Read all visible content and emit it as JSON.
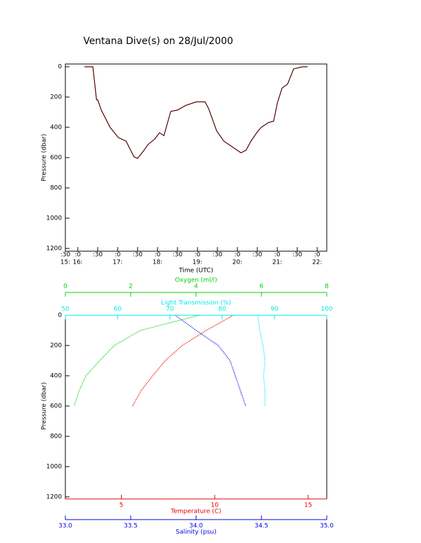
{
  "chart_data": [
    {
      "type": "line",
      "title": "Ventana Dive(s) on 28/Jul/2000",
      "xlabel": "Time (UTC)",
      "ylabel": "Pressure (dbar)",
      "invert_y": true,
      "color": "#500000",
      "x": [
        16.17,
        16.38,
        16.47,
        16.5,
        16.59,
        16.81,
        17.02,
        17.21,
        17.41,
        17.5,
        17.64,
        17.76,
        17.93,
        18.05,
        18.16,
        18.33,
        18.5,
        18.71,
        18.97,
        19.19,
        19.28,
        19.48,
        19.66,
        19.91,
        20.09,
        20.22,
        20.34,
        20.52,
        20.6,
        20.78,
        20.91,
        21.0,
        21.12,
        21.26,
        21.41,
        21.64,
        21.76
      ],
      "values": [
        0,
        0,
        218,
        218,
        286,
        400,
        468,
        491,
        595,
        605,
        559,
        514,
        477,
        436,
        455,
        295,
        286,
        255,
        232,
        232,
        277,
        423,
        491,
        536,
        568,
        550,
        491,
        423,
        400,
        368,
        359,
        241,
        141,
        114,
        14,
        0,
        0
      ],
      "xlim": [
        15.69,
        22.24
      ],
      "xticks": [
        {
          "value": 15.69,
          "label": ":30"
        },
        {
          "value": 16,
          "label": ":0"
        },
        {
          "value": 16.5,
          "label": ":30"
        },
        {
          "value": 17,
          "label": ":0"
        },
        {
          "value": 17.5,
          "label": ":30"
        },
        {
          "value": 18,
          "label": ":0"
        },
        {
          "value": 18.5,
          "label": ":30"
        },
        {
          "value": 19,
          "label": ":0"
        },
        {
          "value": 19.5,
          "label": ":30"
        },
        {
          "value": 20,
          "label": ":0"
        },
        {
          "value": 20.5,
          "label": ":30"
        },
        {
          "value": 21,
          "label": ":0"
        },
        {
          "value": 21.5,
          "label": ":30"
        },
        {
          "value": 22,
          "label": ":0"
        }
      ],
      "xticks2": [
        {
          "value": 15.69,
          "label": "15:"
        },
        {
          "value": 16,
          "label": "16:"
        },
        {
          "value": 17,
          "label": "17:"
        },
        {
          "value": 18,
          "label": "18:"
        },
        {
          "value": 19,
          "label": "19:"
        },
        {
          "value": 20,
          "label": "20:"
        },
        {
          "value": 21,
          "label": "21:"
        },
        {
          "value": 22,
          "label": "22:"
        }
      ],
      "ylim": [
        0,
        1200
      ],
      "yticks": [
        0,
        200,
        400,
        600,
        800,
        1000,
        1200
      ]
    },
    {
      "type": "profile",
      "ylabel": "Pressure (dbar)",
      "invert_y": true,
      "y": [
        0,
        100,
        200,
        300,
        400,
        500,
        600
      ],
      "ylim": [
        0,
        1200
      ],
      "yticks": [
        0,
        200,
        400,
        600,
        800,
        1000,
        1200
      ],
      "series": [
        {
          "name": "Temperature (C)",
          "color": "#e00000",
          "values": [
            11.0,
            9.55,
            8.26,
            7.35,
            6.68,
            6.05,
            5.6
          ],
          "xlim": [
            2,
            16
          ],
          "xticks": [
            5,
            10,
            15
          ]
        },
        {
          "name": "Salinity (psu)",
          "color": "#0000e0",
          "values": [
            33.84,
            34.0,
            34.17,
            34.26,
            34.3,
            34.34,
            34.38
          ],
          "xlim": [
            33,
            35
          ],
          "xticks": [
            {
              "value": 33,
              "label": "33.0"
            },
            33.5,
            {
              "value": 34,
              "label": "34.0"
            },
            34.5,
            {
              "value": 35,
              "label": "35.0"
            }
          ]
        },
        {
          "name": "Oxygen (ml/l)",
          "color": "#00d000",
          "values": [
            4.1,
            2.3,
            1.5,
            1.05,
            0.63,
            0.42,
            0.27
          ],
          "xlim": [
            0,
            8
          ],
          "xticks": [
            0,
            2,
            4,
            6,
            8
          ]
        },
        {
          "name": "Light Transmission (%)",
          "color": "#00e8e8",
          "values": [
            86.8,
            87.2,
            87.8,
            88.2,
            87.9,
            88.2,
            88.2
          ],
          "xlim": [
            50,
            100
          ],
          "xticks": [
            50,
            60,
            70,
            80,
            90,
            100
          ]
        }
      ]
    }
  ]
}
